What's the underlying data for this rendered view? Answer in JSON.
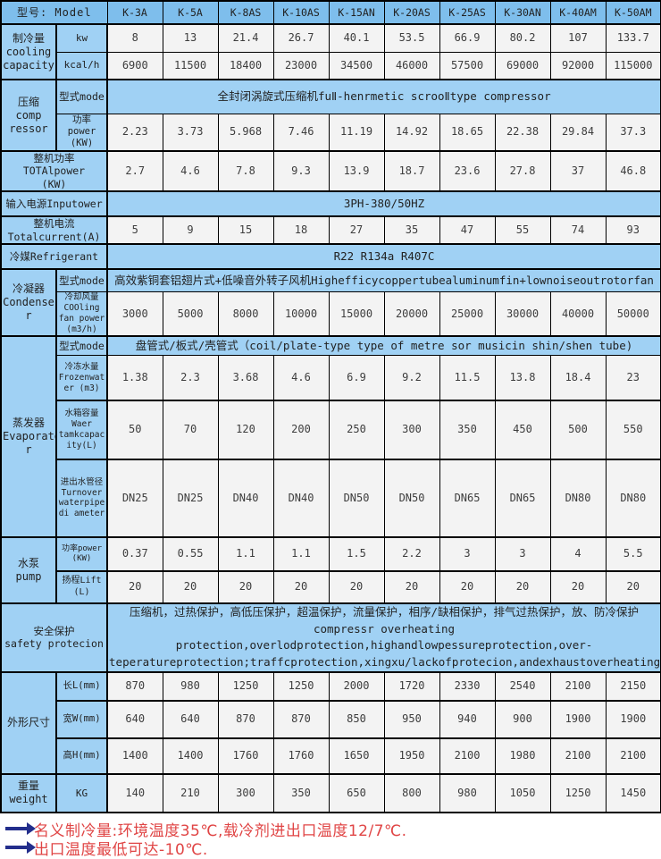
{
  "colors": {
    "cell_blue": "#A0D1F4",
    "header_blue": "#7EBEEC",
    "data_bg": "#F3F3F3",
    "note_red": "#E04545",
    "arrow_navy": "#232E8C",
    "border": "#000000"
  },
  "table": {
    "rows": [
      {
        "label": "型号: Model",
        "cells": [
          "K-3A",
          "K-5A",
          "K-8AS",
          "K-10AS",
          "K-15AN",
          "K-20AS",
          "K-25AS",
          "K-30AN",
          "K-40AM",
          "K-50AM"
        ]
      },
      {
        "group": "制冷量\ncooling\ncapacity",
        "groupspan": 2,
        "sub": "kw",
        "cells": [
          "8",
          "13",
          "21.4",
          "26.7",
          "40.1",
          "53.5",
          "66.9",
          "80.2",
          "107",
          "133.7"
        ]
      },
      {
        "sub": "kcal/h",
        "cells": [
          "6900",
          "11500",
          "18400",
          "23000",
          "34500",
          "46000",
          "57500",
          "69000",
          "92000",
          "115000"
        ]
      },
      {
        "group": "压缩\ncomp\nressor",
        "groupspan": 2,
        "sub": "型式mode",
        "span": "全封闭涡旋式压缩机fuⅡ-henrmetic scrooⅡtype compressor"
      },
      {
        "sub": "功率\npower\n(KW)",
        "cells": [
          "2.23",
          "3.73",
          "5.968",
          "7.46",
          "11.19",
          "14.92",
          "18.65",
          "22.38",
          "29.84",
          "37.3"
        ]
      },
      {
        "wide": "整机功率\nTOTAlpower\n(KW)",
        "cells": [
          "2.7",
          "4.6",
          "7.8",
          "9.3",
          "13.9",
          "18.7",
          "23.6",
          "27.8",
          "37",
          "46.8"
        ]
      },
      {
        "wide": "输入电源Inputower",
        "span": "3PH-380/50HZ"
      },
      {
        "wide": "整机电流\nTotalcurrent(A)",
        "cells": [
          "5",
          "9",
          "15",
          "18",
          "27",
          "35",
          "47",
          "55",
          "74",
          "93"
        ]
      },
      {
        "wide": "冷媒Refrigerant",
        "span": "R22 R134a R407C"
      },
      {
        "group": "冷凝器\nCondense\nr",
        "groupspan": 2,
        "sub": "型式mode",
        "span": "高效紫铜套铝翅片式+低噪音外转子风机Highefficycoppertubealuminumfin+lownoiseoutrotorfan"
      },
      {
        "sub": "冷却风量\nCOOling\nfan power\n(m3/h)",
        "cells": [
          "3000",
          "5000",
          "8000",
          "10000",
          "15000",
          "20000",
          "25000",
          "30000",
          "40000",
          "50000"
        ]
      },
      {
        "group": "蒸发器\nEvaporato\nr",
        "groupspan": 4,
        "sub": "型式mode",
        "span": "盘管式/板式/壳管式（coil/plate-type type of metre sor musicin shin/shen tube)"
      },
      {
        "sub": "冷冻水量\nFrozenwat\ner (m3)",
        "cells": [
          "1.38",
          "2.3",
          "3.68",
          "4.6",
          "6.9",
          "9.2",
          "11.5",
          "13.8",
          "18.4",
          "23"
        ]
      },
      {
        "sub": "水箱容量\nWaer\ntamkcapac\nity(L)",
        "cells": [
          "50",
          "70",
          "120",
          "200",
          "250",
          "300",
          "350",
          "450",
          "500",
          "550"
        ]
      },
      {
        "sub": "进出水管径\nTurnover\nwaterpipe\ndi ameter",
        "cells": [
          "DN25",
          "DN25",
          "DN40",
          "DN40",
          "DN50",
          "DN50",
          "DN65",
          "DN65",
          "DN80",
          "DN80"
        ]
      },
      {
        "group": "水泵\npump",
        "groupspan": 2,
        "sub": "功率power\n(KW)",
        "cells": [
          "0.37",
          "0.55",
          "1.1",
          "1.1",
          "1.5",
          "2.2",
          "3",
          "3",
          "4",
          "5.5"
        ]
      },
      {
        "sub": "扬程Lift\n(L)",
        "cells": [
          "20",
          "20",
          "20",
          "20",
          "20",
          "20",
          "20",
          "20",
          "20",
          "20"
        ]
      },
      {
        "wide": "安全保护\nsafety protecion",
        "span_lines": [
          "压缩机，过热保护，高低压保护，超温保护，流量保护，相序/缺相保护，排气过热保护，放、防冷保护",
          "compressr overheating protection,overlodprotection,highandlowpessureprotection,over-teperatureprotection;traffcprotection,xingxu/lackofprotecion,andexhaustoverheatingproteion,frostprotection"
        ]
      },
      {
        "group": "外形尺寸",
        "groupspan": 3,
        "sub": "长L(mm)",
        "cells": [
          "870",
          "980",
          "1250",
          "1250",
          "2000",
          "1720",
          "2330",
          "2540",
          "2100",
          "2150"
        ]
      },
      {
        "sub": "宽W(mm)",
        "cells": [
          "640",
          "640",
          "870",
          "870",
          "850",
          "950",
          "940",
          "900",
          "1900",
          "1900"
        ]
      },
      {
        "sub": "高H(mm)",
        "cells": [
          "1400",
          "1400",
          "1760",
          "1760",
          "1650",
          "1950",
          "2100",
          "1980",
          "2100",
          "2100"
        ]
      },
      {
        "group": "重量\nweight",
        "groupspan": 1,
        "sub": "KG",
        "cells": [
          "140",
          "210",
          "300",
          "350",
          "650",
          "800",
          "980",
          "1050",
          "1250",
          "1450"
        ]
      }
    ]
  },
  "notes": [
    "名义制冷量:环境温度35℃,载冷剂进出口温度12/7℃.",
    "出口温度最低可达-10℃."
  ]
}
